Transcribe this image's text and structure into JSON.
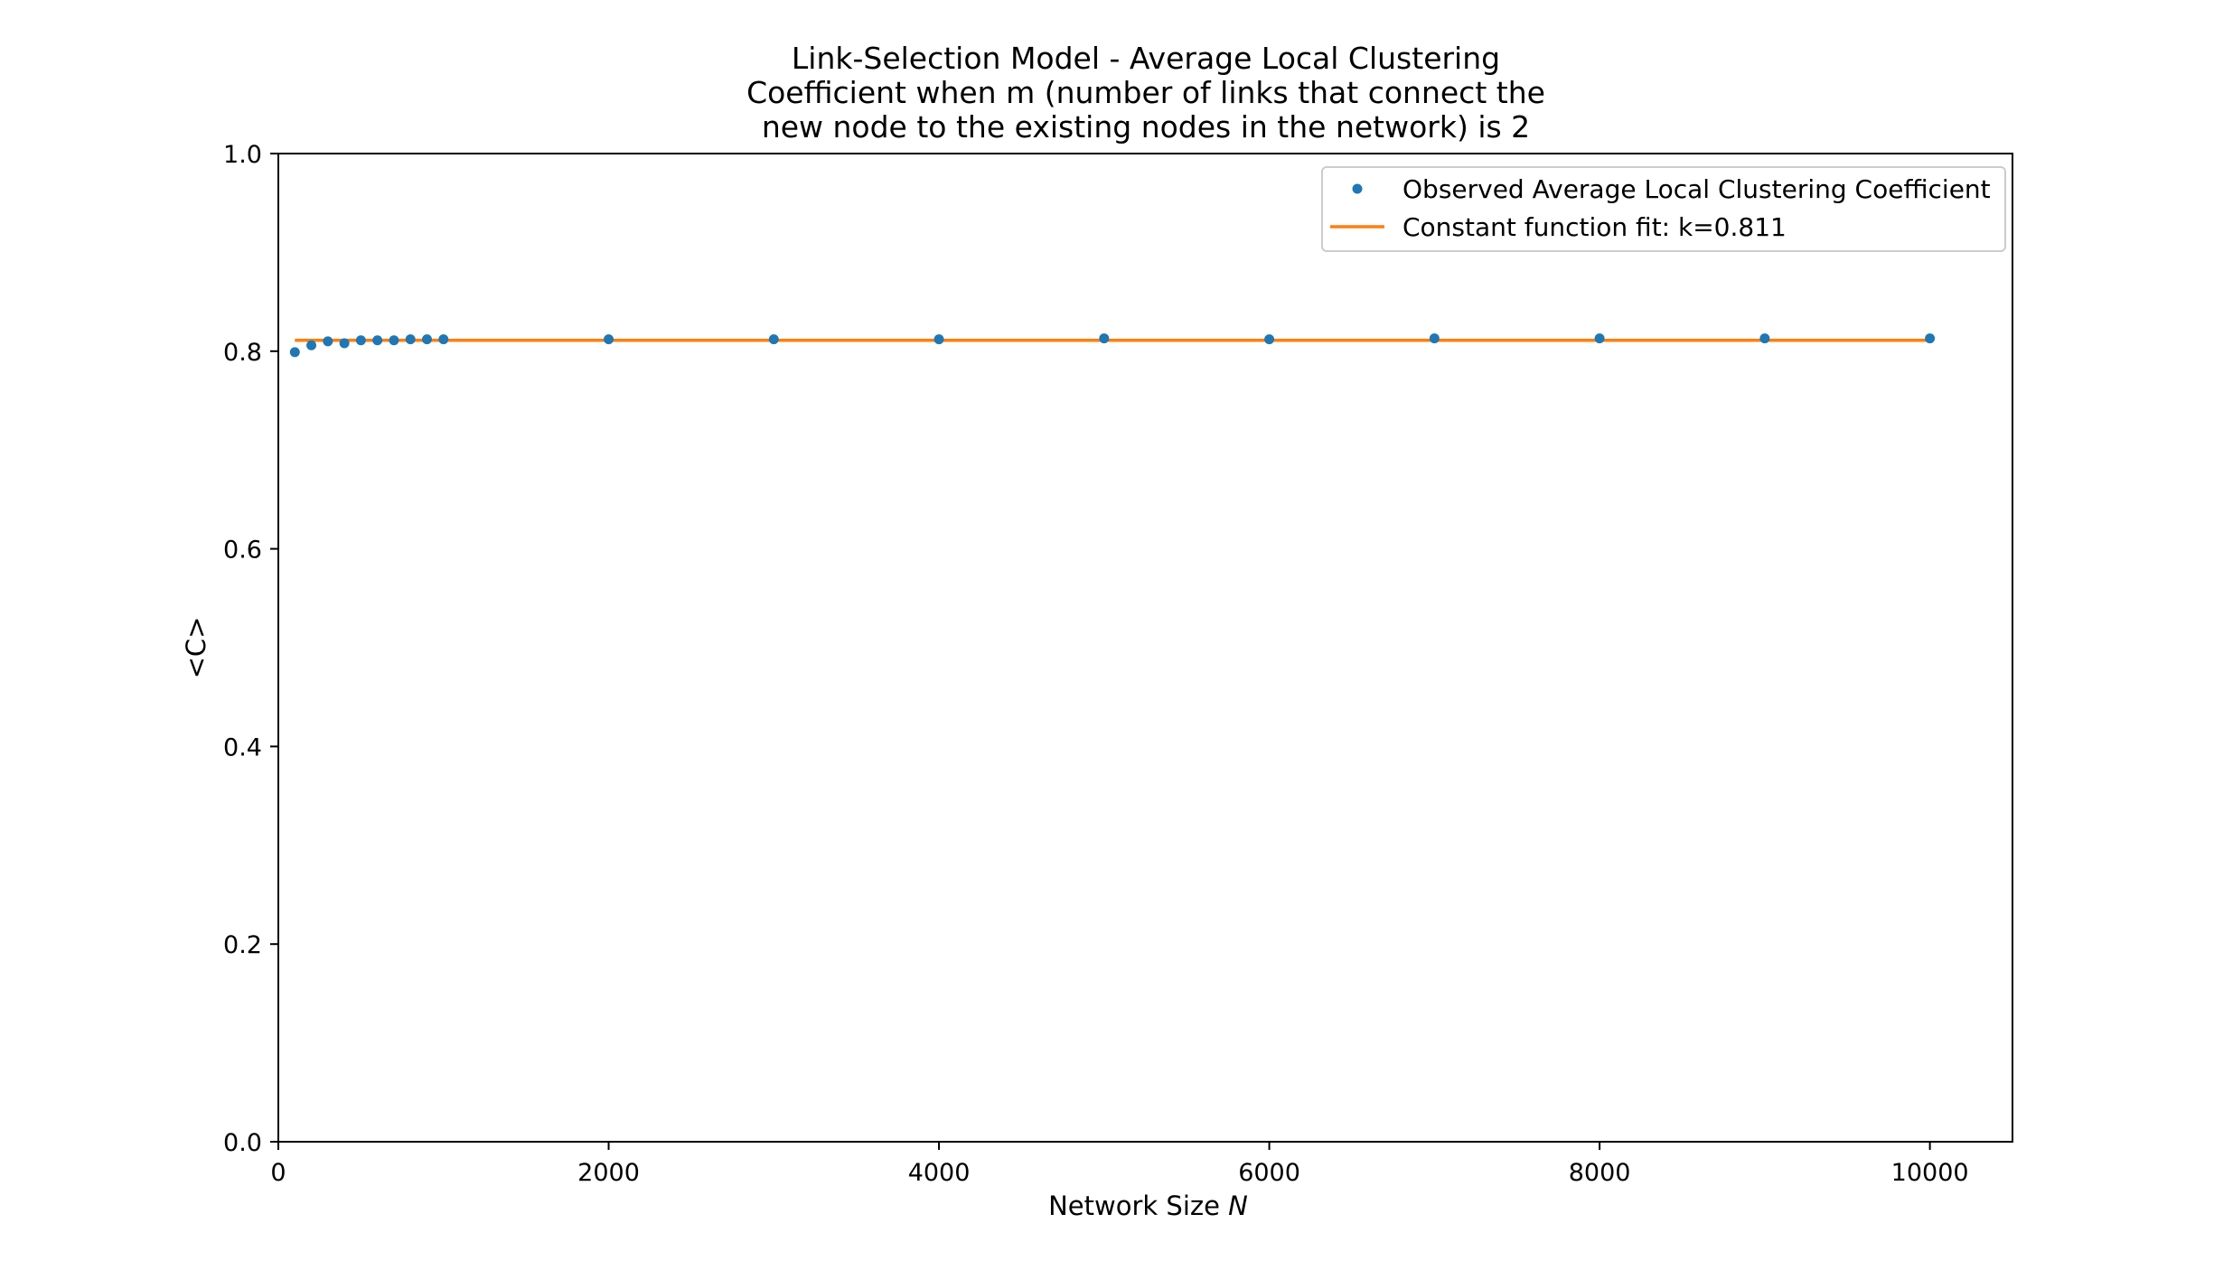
{
  "chart_data": {
    "type": "scatter",
    "title": [
      "Link-Selection Model - Average Local Clustering",
      "Coefficient when m (number of links that connect the",
      "new node to the existing nodes in the network) is 2"
    ],
    "xlabel": "Network Size",
    "xlabel_var": "N",
    "ylabel": "<C>",
    "xlim": [
      0,
      10500
    ],
    "ylim": [
      0.0,
      1.0
    ],
    "xticks": [
      0,
      2000,
      4000,
      6000,
      8000,
      10000
    ],
    "yticks": [
      "0.0",
      "0.2",
      "0.4",
      "0.6",
      "0.8",
      "1.0"
    ],
    "grid": false,
    "legend_position": "top-right",
    "series": [
      {
        "name": "Observed Average Local Clustering Coefficient",
        "kind": "scatter",
        "color": "#1f77b4",
        "x": [
          100,
          200,
          300,
          400,
          500,
          600,
          700,
          800,
          900,
          1000,
          2000,
          3000,
          4000,
          5000,
          6000,
          7000,
          8000,
          9000,
          10000
        ],
        "y": [
          0.799,
          0.806,
          0.81,
          0.808,
          0.811,
          0.811,
          0.811,
          0.812,
          0.812,
          0.812,
          0.812,
          0.812,
          0.812,
          0.813,
          0.812,
          0.813,
          0.813,
          0.813,
          0.813
        ]
      },
      {
        "name": "Constant function fit: k=0.811",
        "kind": "line",
        "color": "#ff7f0e",
        "x": [
          100,
          10000
        ],
        "y": [
          0.811,
          0.811
        ]
      }
    ]
  }
}
